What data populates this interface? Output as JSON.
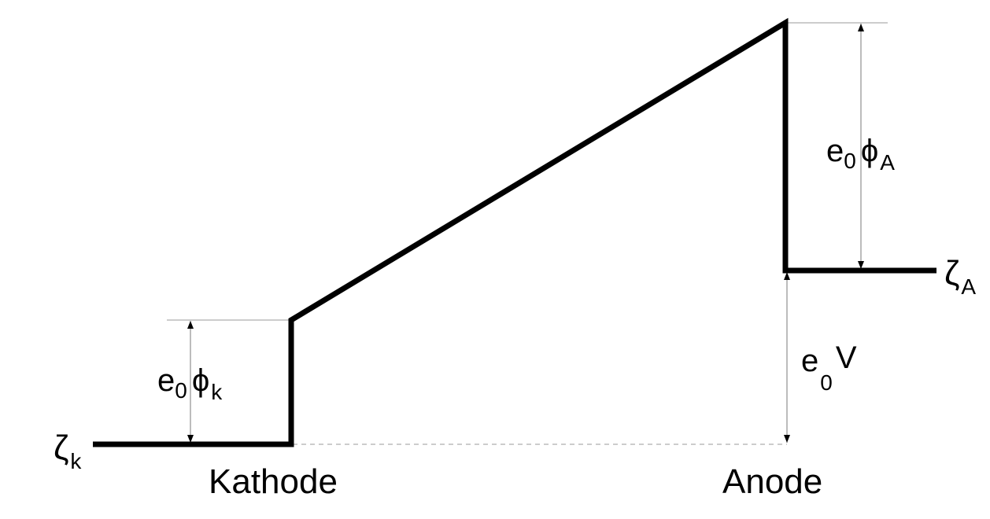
{
  "labels": {
    "kathode": "Kathode",
    "anode": "Anode",
    "zeta_k": {
      "main": "ζ",
      "sub": "k"
    },
    "zeta_a": {
      "main": "ζ",
      "sub": "A"
    },
    "phi_k": {
      "e": "e",
      "e_sub": "0",
      "phi": "ϕ",
      "phi_sub": "k"
    },
    "phi_a": {
      "e": "e",
      "e_sub": "0",
      "phi": "ϕ",
      "phi_sub": "A"
    },
    "voltage": {
      "e": "e",
      "e_sub": "0",
      "v": "V"
    }
  },
  "colors": {
    "line": "#000000",
    "guide": "#9a9a9a"
  }
}
